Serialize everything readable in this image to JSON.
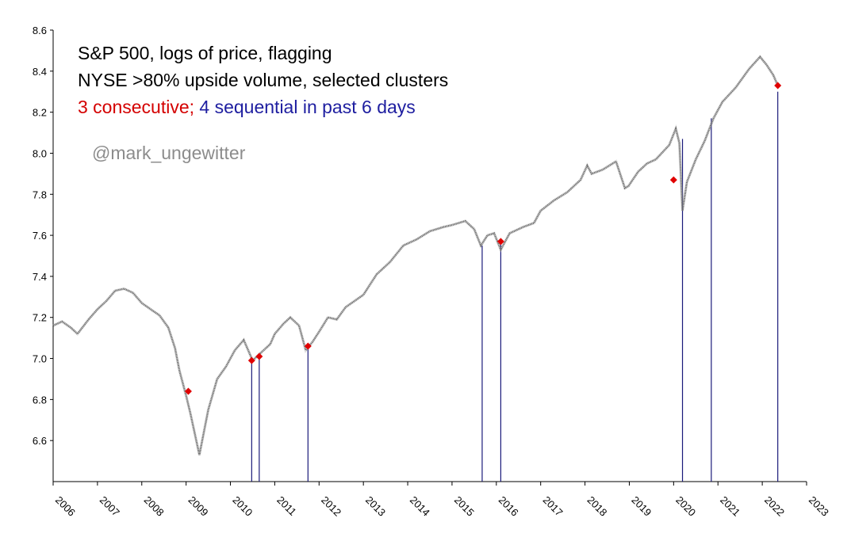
{
  "chart_data": {
    "type": "line",
    "title_lines": [
      "S&P 500, logs of price, flagging",
      "NYSE >80% upside volume, selected clusters"
    ],
    "subtitle_red": "3 consecutive;",
    "subtitle_blue": "4 sequential in past 6 days",
    "watermark": "@mark_ungewitter",
    "xlabel": "",
    "ylabel": "",
    "xlim": [
      2006,
      2023
    ],
    "ylim": [
      6.4,
      8.6
    ],
    "y_ticks": [
      "8.6",
      "8.4",
      "8.2",
      "8.0",
      "7.8",
      "7.6",
      "7.4",
      "7.2",
      "7.0",
      "6.8",
      "6.6"
    ],
    "x_ticks": [
      "2006",
      "2007",
      "2008",
      "2009",
      "2010",
      "2011",
      "2012",
      "2013",
      "2014",
      "2015",
      "2016",
      "2017",
      "2018",
      "2019",
      "2020",
      "2021",
      "2022",
      "2023"
    ],
    "colors": {
      "line": "#555555",
      "red": "#e00000",
      "blue": "#1a1a7a",
      "watermark": "#8c8c8c"
    },
    "series": [
      {
        "name": "S&P 500 log price",
        "x": [
          2006.0,
          2006.2,
          2006.4,
          2006.55,
          2006.8,
          2007.0,
          2007.2,
          2007.4,
          2007.6,
          2007.8,
          2008.0,
          2008.2,
          2008.4,
          2008.6,
          2008.75,
          2008.85,
          2009.0,
          2009.1,
          2009.2,
          2009.3,
          2009.5,
          2009.7,
          2009.9,
          2010.1,
          2010.3,
          2010.5,
          2010.7,
          2010.9,
          2011.0,
          2011.2,
          2011.35,
          2011.55,
          2011.7,
          2011.85,
          2012.0,
          2012.2,
          2012.4,
          2012.6,
          2012.8,
          2013.0,
          2013.3,
          2013.6,
          2013.9,
          2014.2,
          2014.5,
          2014.8,
          2015.0,
          2015.3,
          2015.5,
          2015.65,
          2015.8,
          2015.95,
          2016.1,
          2016.3,
          2016.6,
          2016.85,
          2017.0,
          2017.3,
          2017.6,
          2017.9,
          2018.05,
          2018.15,
          2018.4,
          2018.7,
          2018.9,
          2018.98,
          2019.2,
          2019.4,
          2019.6,
          2019.9,
          2020.05,
          2020.13,
          2020.2,
          2020.3,
          2020.5,
          2020.7,
          2020.9,
          2021.1,
          2021.4,
          2021.7,
          2021.95,
          2022.1,
          2022.25,
          2022.35
        ],
        "values": [
          7.16,
          7.18,
          7.15,
          7.12,
          7.19,
          7.24,
          7.28,
          7.33,
          7.34,
          7.32,
          7.27,
          7.24,
          7.21,
          7.15,
          7.05,
          6.94,
          6.82,
          6.73,
          6.63,
          6.53,
          6.75,
          6.9,
          6.96,
          7.04,
          7.09,
          6.99,
          7.03,
          7.07,
          7.12,
          7.17,
          7.2,
          7.16,
          7.04,
          7.08,
          7.13,
          7.2,
          7.19,
          7.25,
          7.28,
          7.31,
          7.41,
          7.47,
          7.55,
          7.58,
          7.62,
          7.64,
          7.65,
          7.67,
          7.63,
          7.55,
          7.6,
          7.61,
          7.53,
          7.61,
          7.64,
          7.66,
          7.72,
          7.77,
          7.81,
          7.87,
          7.94,
          7.9,
          7.92,
          7.96,
          7.83,
          7.84,
          7.91,
          7.95,
          7.97,
          8.04,
          8.12,
          8.05,
          7.72,
          7.86,
          7.97,
          8.06,
          8.17,
          8.25,
          8.32,
          8.41,
          8.47,
          8.43,
          8.38,
          8.33
        ]
      }
    ],
    "flags_red": [
      {
        "x": 2009.05,
        "y": 6.84
      },
      {
        "x": 2010.48,
        "y": 6.99
      },
      {
        "x": 2010.65,
        "y": 7.01
      },
      {
        "x": 2011.75,
        "y": 7.06
      },
      {
        "x": 2016.1,
        "y": 7.57
      },
      {
        "x": 2020.0,
        "y": 7.87
      },
      {
        "x": 2022.35,
        "y": 8.33
      }
    ],
    "flags_blue": [
      {
        "x": 2010.48,
        "y": 6.99
      },
      {
        "x": 2010.65,
        "y": 7.01
      },
      {
        "x": 2011.75,
        "y": 7.07
      },
      {
        "x": 2015.68,
        "y": 7.55
      },
      {
        "x": 2016.1,
        "y": 7.57
      },
      {
        "x": 2020.2,
        "y": 8.07
      },
      {
        "x": 2020.85,
        "y": 8.17
      },
      {
        "x": 2022.35,
        "y": 8.3
      }
    ]
  }
}
